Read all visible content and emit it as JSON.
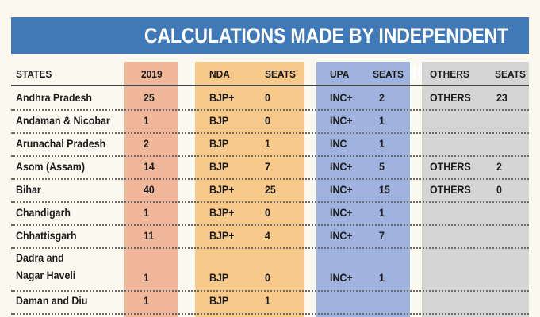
{
  "title": "CALCULATIONS MADE BY INDEPENDENT PSEPHOLOGIST I",
  "headers": {
    "states": "STATES",
    "year": "2019",
    "nda": "NDA",
    "nda_seats": "SEATS",
    "upa": "UPA",
    "upa_seats": "SEATS",
    "others": "OTHERS",
    "others_seats": "SEATS"
  },
  "rows": [
    {
      "state": "Andhra Pradesh",
      "total": "25",
      "nda": "BJP+",
      "nda_seats": "0",
      "upa": "INC+",
      "upa_seats": "2",
      "others": "OTHERS",
      "others_seats": "23"
    },
    {
      "state": "Andaman & Nicobar",
      "total": "1",
      "nda": "BJP",
      "nda_seats": "0",
      "upa": "INC+",
      "upa_seats": "1",
      "others": "",
      "others_seats": ""
    },
    {
      "state": "Arunachal Pradesh",
      "total": "2",
      "nda": "BJP",
      "nda_seats": "1",
      "upa": "INC",
      "upa_seats": "1",
      "others": "",
      "others_seats": ""
    },
    {
      "state": "Asom (Assam)",
      "total": "14",
      "nda": "BJP",
      "nda_seats": "7",
      "upa": "INC+",
      "upa_seats": "5",
      "others": "OTHERS",
      "others_seats": "2"
    },
    {
      "state": "Bihar",
      "total": "40",
      "nda": "BJP+",
      "nda_seats": "25",
      "upa": "INC+",
      "upa_seats": "15",
      "others": "OTHERS",
      "others_seats": "0"
    },
    {
      "state": "Chandigarh",
      "total": "1",
      "nda": "BJP+",
      "nda_seats": "0",
      "upa": "INC+",
      "upa_seats": "1",
      "others": "",
      "others_seats": ""
    },
    {
      "state": "Chhattisgarh",
      "total": "11",
      "nda": "BJP+",
      "nda_seats": "4",
      "upa": "INC+",
      "upa_seats": "7",
      "others": "",
      "others_seats": ""
    },
    {
      "state": "Dadra and\nNagar Haveli",
      "total": "1",
      "nda": "BJP",
      "nda_seats": "0",
      "upa": "INC+",
      "upa_seats": "1",
      "others": "",
      "others_seats": ""
    },
    {
      "state": "Daman and Diu",
      "total": "1",
      "nda": "BJP",
      "nda_seats": "1",
      "upa": "",
      "upa_seats": "",
      "others": "",
      "others_seats": ""
    }
  ],
  "colors": {
    "banner": "#3f79b8",
    "year_band": "#f0b79a",
    "nda_band": "#f7c98a",
    "upa_band": "#9fb3de",
    "others_band": "#d5d5d5",
    "background": "#fbf8ef"
  }
}
